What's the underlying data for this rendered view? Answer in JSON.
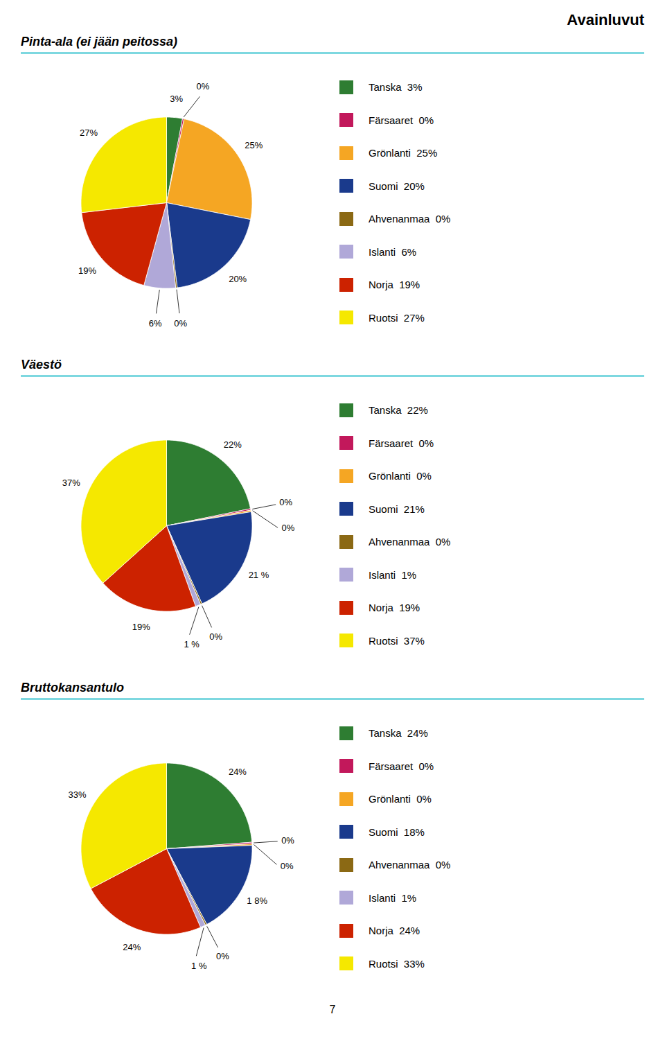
{
  "title": "Avainluvut",
  "caption": "7",
  "chart_data": [
    {
      "type": "pie",
      "title": "Pinta-ala (ei jään peitossa)",
      "categories": [
        "Tanska  3%",
        "Färsaaret  0%",
        "Grönlanti  25%",
        "Suomi  20%",
        "Ahvenanmaa  0%",
        "Islanti  6%",
        "Norja  19%",
        "Ruotsi  27%"
      ],
      "values": [
        3,
        0.3,
        25,
        20,
        0.3,
        6,
        19,
        27
      ],
      "value_labels": [
        "3%",
        "0%",
        "25%",
        "20%",
        "0%",
        "6%",
        "19%",
        "27%"
      ],
      "colors": [
        "#2e7d32",
        "#c2185b",
        "#f5a623",
        "#1a3a8c",
        "#8b6914",
        "#b0a8d8",
        "#cc2200",
        "#f5e800"
      ],
      "data_labels": true,
      "legend": "right"
    },
    {
      "type": "pie",
      "title": "Väestö",
      "categories": [
        "Tanska  22%",
        "Färsaaret  0%",
        "Grönlanti  0%",
        "Suomi  21%",
        "Ahvenanmaa  0%",
        "Islanti  1%",
        "Norja  19%",
        "Ruotsi  37%"
      ],
      "values": [
        22,
        0.3,
        0.3,
        21,
        0.3,
        1,
        19,
        37
      ],
      "value_labels": [
        "22%",
        "0%",
        "0%",
        "21 %",
        "0%",
        "1 %",
        "19%",
        "37%"
      ],
      "colors": [
        "#2e7d32",
        "#c2185b",
        "#f5a623",
        "#1a3a8c",
        "#8b6914",
        "#b0a8d8",
        "#cc2200",
        "#f5e800"
      ],
      "data_labels": true,
      "legend": "right"
    },
    {
      "type": "pie",
      "title": "Bruttokansantulo",
      "categories": [
        "Tanska  24%",
        "Färsaaret  0%",
        "Grönlanti  0%",
        "Suomi  18%",
        "Ahvenanmaa  0%",
        "Islanti  1%",
        "Norja  24%",
        "Ruotsi  33%"
      ],
      "values": [
        24,
        0.3,
        0.3,
        18,
        0.3,
        1,
        24,
        33
      ],
      "value_labels": [
        "24%",
        "0%",
        "0%",
        "1 8%",
        "0%",
        "1 %",
        "24%",
        "33%"
      ],
      "colors": [
        "#2e7d32",
        "#c2185b",
        "#f5a623",
        "#1a3a8c",
        "#8b6914",
        "#b0a8d8",
        "#cc2200",
        "#f5e800"
      ],
      "data_labels": true,
      "legend": "right"
    }
  ]
}
